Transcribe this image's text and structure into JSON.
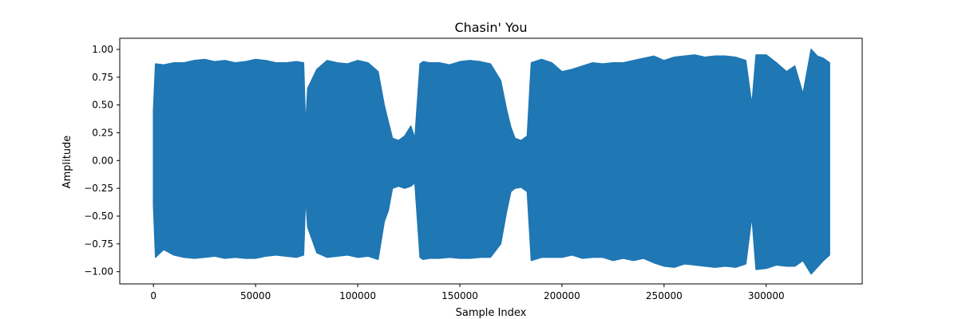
{
  "chart_data": {
    "type": "line",
    "title": "Chasin' You",
    "xlabel": "Sample Index",
    "ylabel": "Amplitude",
    "xlim": [
      -16500,
      347000
    ],
    "ylim": [
      -1.11,
      1.1
    ],
    "grid": false,
    "series_color": "#1f77b4",
    "x_ticks": [
      {
        "value": 0,
        "label": "0"
      },
      {
        "value": 50000,
        "label": "50000"
      },
      {
        "value": 100000,
        "label": "100000"
      },
      {
        "value": 150000,
        "label": "150000"
      },
      {
        "value": 200000,
        "label": "200000"
      },
      {
        "value": 250000,
        "label": "250000"
      },
      {
        "value": 300000,
        "label": "300000"
      }
    ],
    "y_ticks": [
      {
        "value": 1.0,
        "label": "1.00"
      },
      {
        "value": 0.75,
        "label": "0.75"
      },
      {
        "value": 0.5,
        "label": "0.50"
      },
      {
        "value": 0.25,
        "label": "0.25"
      },
      {
        "value": 0.0,
        "label": "0.00"
      },
      {
        "value": -0.25,
        "label": "−0.25"
      },
      {
        "value": -0.5,
        "label": "−0.50"
      },
      {
        "value": -0.75,
        "label": "−0.75"
      },
      {
        "value": -1.0,
        "label": "−1.00"
      }
    ],
    "series": [
      {
        "x": [
          0,
          1000,
          5000,
          10000,
          15000,
          20000,
          25000,
          30000,
          35000,
          40000,
          45000,
          50000,
          55000,
          60000,
          65000,
          70000,
          73500,
          74500,
          75500,
          80000,
          85000,
          90000,
          95000,
          100000,
          105000,
          110000,
          113000,
          115000,
          117000,
          120000,
          123000,
          126000,
          128000,
          130500,
          132000,
          135000,
          140000,
          145000,
          150000,
          155000,
          160000,
          165000,
          170000,
          173000,
          175000,
          177000,
          180000,
          183000,
          185000,
          190000,
          195000,
          200000,
          205000,
          210000,
          215000,
          220000,
          225000,
          230000,
          235000,
          240000,
          245000,
          250000,
          255000,
          260000,
          265000,
          270000,
          275000,
          280000,
          285000,
          290000,
          293000,
          295000,
          300000,
          305000,
          310000,
          314000,
          318000,
          322000,
          325000,
          328000,
          331000
        ],
        "max": [
          0.45,
          0.87,
          0.86,
          0.88,
          0.88,
          0.9,
          0.91,
          0.89,
          0.9,
          0.88,
          0.89,
          0.91,
          0.9,
          0.88,
          0.88,
          0.89,
          0.88,
          0.3,
          0.65,
          0.82,
          0.9,
          0.88,
          0.87,
          0.9,
          0.88,
          0.8,
          0.5,
          0.35,
          0.2,
          0.18,
          0.22,
          0.31,
          0.2,
          0.87,
          0.89,
          0.88,
          0.88,
          0.86,
          0.89,
          0.9,
          0.89,
          0.87,
          0.72,
          0.45,
          0.3,
          0.2,
          0.18,
          0.22,
          0.88,
          0.91,
          0.88,
          0.8,
          0.82,
          0.85,
          0.88,
          0.87,
          0.88,
          0.88,
          0.9,
          0.92,
          0.94,
          0.9,
          0.93,
          0.94,
          0.95,
          0.93,
          0.94,
          0.94,
          0.93,
          0.9,
          0.5,
          0.95,
          0.95,
          0.88,
          0.8,
          0.85,
          0.6,
          1.0,
          0.94,
          0.92,
          0.88
        ],
        "min": [
          -0.4,
          -0.87,
          -0.8,
          -0.85,
          -0.87,
          -0.88,
          -0.87,
          -0.86,
          -0.88,
          -0.87,
          -0.88,
          -0.88,
          -0.86,
          -0.85,
          -0.86,
          -0.87,
          -0.85,
          -0.32,
          -0.6,
          -0.83,
          -0.87,
          -0.86,
          -0.85,
          -0.87,
          -0.86,
          -0.89,
          -0.55,
          -0.45,
          -0.25,
          -0.23,
          -0.25,
          -0.23,
          -0.2,
          -0.87,
          -0.89,
          -0.88,
          -0.88,
          -0.87,
          -0.88,
          -0.88,
          -0.87,
          -0.87,
          -0.75,
          -0.45,
          -0.28,
          -0.25,
          -0.24,
          -0.28,
          -0.9,
          -0.87,
          -0.87,
          -0.87,
          -0.85,
          -0.88,
          -0.87,
          -0.87,
          -0.9,
          -0.88,
          -0.9,
          -0.88,
          -0.92,
          -0.95,
          -0.96,
          -0.93,
          -0.94,
          -0.95,
          -0.96,
          -0.95,
          -0.96,
          -0.93,
          -0.5,
          -0.98,
          -0.97,
          -0.94,
          -0.95,
          -0.95,
          -0.9,
          -1.02,
          -0.96,
          -0.9,
          -0.85
        ]
      }
    ]
  }
}
